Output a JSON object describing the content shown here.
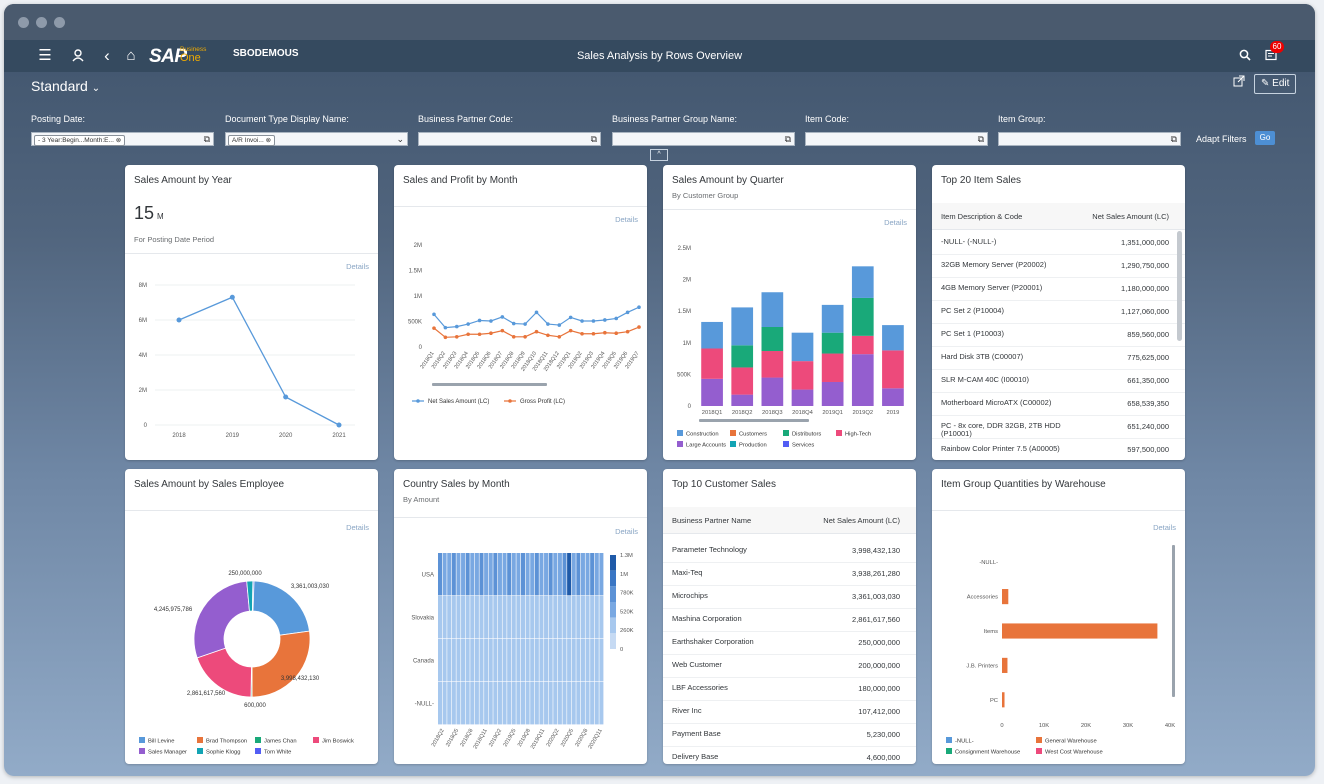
{
  "shell": {
    "company": "SBODEMOUS",
    "title": "Sales Analysis by Rows Overview",
    "notifications": "60",
    "logo_text": "SAP",
    "logo_product_1": "Business",
    "logo_product_2": "One"
  },
  "header": {
    "variant": "Standard",
    "edit_label": "Edit"
  },
  "filters": [
    {
      "label": "Posting Date:",
      "token": "- 3 Year:Begin...Month:E..."
    },
    {
      "label": "Document Type Display Name:",
      "token": "A/R Invoi..."
    },
    {
      "label": "Business Partner Code:",
      "token": ""
    },
    {
      "label": "Business Partner Group Name:",
      "token": ""
    },
    {
      "label": "Item Code:",
      "token": ""
    },
    {
      "label": "Item Group:",
      "token": ""
    }
  ],
  "filter_actions": {
    "adapt": "Adapt Filters",
    "go": "Go"
  },
  "details_label": "Details",
  "cards": {
    "year": {
      "title": "Sales Amount by Year",
      "kpi_value": "15",
      "kpi_unit": "M",
      "kpi_subtitle": "For Posting Date Period",
      "chart_data": {
        "type": "line",
        "categories": [
          "2018",
          "2019",
          "2020",
          "2021"
        ],
        "values": [
          6000000,
          7300000,
          1600000,
          0
        ],
        "y_ticks": [
          "0",
          "2M",
          "4M",
          "6M",
          "8M"
        ],
        "ylim": [
          0,
          8000000
        ]
      }
    },
    "month": {
      "title": "Sales and Profit by Month",
      "chart_data": {
        "type": "line",
        "categories": [
          "2018Q1",
          "2018Q2",
          "2018Q3",
          "2018Q4",
          "2018Q5",
          "2018Q6",
          "2018Q7",
          "2018Q8",
          "2018Q9",
          "2018Q10",
          "2018Q11",
          "2018Q12",
          "2019Q1",
          "2019Q2",
          "2019Q3",
          "2019Q4",
          "2019Q5",
          "2019Q6",
          "2019Q7"
        ],
        "tick_labels": [
          "2018Q1",
          "2018Q2",
          "2018Q3",
          "2018Q4",
          "2018Q5",
          "2018Q6",
          "2018Q7",
          "2018Q8",
          "2018Q9",
          "2018Q10",
          "2018Q11",
          "2018Q12",
          "2019Q1",
          "2019Q2",
          "2019Q3",
          "2019Q4",
          "2019Q5",
          "2019Q6",
          "2019Q7"
        ],
        "series": [
          {
            "name": "Net Sales Amount (LC)",
            "color": "#5899da",
            "values": [
              640000,
              380000,
              400000,
              450000,
              520000,
              510000,
              590000,
              460000,
              450000,
              680000,
              450000,
              430000,
              580000,
              510000,
              510000,
              530000,
              560000,
              680000,
              780000
            ]
          },
          {
            "name": "Gross Profit (LC)",
            "color": "#e8743b",
            "values": [
              370000,
              190000,
              200000,
              250000,
              250000,
              270000,
              320000,
              200000,
              200000,
              300000,
              230000,
              200000,
              320000,
              260000,
              260000,
              280000,
              270000,
              300000,
              390000
            ]
          }
        ],
        "y_ticks": [
          "0",
          "500K",
          "1M",
          "1.5M",
          "2M"
        ],
        "ylim": [
          0,
          2000000
        ]
      }
    },
    "quarter": {
      "title": "Sales Amount by Quarter",
      "subtitle": "By Customer Group",
      "chart_data": {
        "type": "bar",
        "categories": [
          "2018Q1",
          "2018Q2",
          "2018Q3",
          "2018Q4",
          "2019Q1",
          "2019Q2",
          "2019"
        ],
        "series": [
          {
            "name": "Construction",
            "color": "#5899da",
            "values": [
              420000,
              600000,
              550000,
              450000,
              440000,
              500000,
              400000
            ]
          },
          {
            "name": "Customers",
            "color": "#e8743b",
            "values": [
              0,
              0,
              0,
              0,
              0,
              0,
              0
            ]
          },
          {
            "name": "Distributors",
            "color": "#19a979",
            "values": [
              0,
              350000,
              380000,
              0,
              330000,
              600000,
              0
            ]
          },
          {
            "name": "High-Tech",
            "color": "#ed4a7b",
            "values": [
              480000,
              430000,
              420000,
              450000,
              450000,
              290000,
              600000
            ]
          },
          {
            "name": "Large Accounts",
            "color": "#945ecf",
            "values": [
              430000,
              180000,
              450000,
              260000,
              380000,
              820000,
              280000
            ]
          },
          {
            "name": "Production",
            "color": "#13a4b4",
            "values": [
              0,
              0,
              0,
              0,
              0,
              0,
              0
            ]
          },
          {
            "name": "Services",
            "color": "#525df4",
            "values": [
              0,
              0,
              0,
              0,
              0,
              0,
              0
            ]
          }
        ],
        "y_ticks": [
          "0",
          "500K",
          "1M",
          "1.5M",
          "2M",
          "2.5M"
        ],
        "ylim": [
          0,
          2500000
        ]
      }
    },
    "top20": {
      "title": "Top 20 Item Sales",
      "col1": "Item Description & Code",
      "col2": "Net Sales Amount (LC)",
      "rows": [
        {
          "name": "-NULL- (-NULL-)",
          "value": "1,351,000,000"
        },
        {
          "name": "32GB Memory Server (P20002)",
          "value": "1,290,750,000"
        },
        {
          "name": "4GB Memory Server (P20001)",
          "value": "1,180,000,000"
        },
        {
          "name": "PC Set 2 (P10004)",
          "value": "1,127,060,000"
        },
        {
          "name": "PC Set 1 (P10003)",
          "value": "859,560,000"
        },
        {
          "name": "Hard Disk 3TB (C00007)",
          "value": "775,625,000"
        },
        {
          "name": "SLR M-CAM 40C (I00010)",
          "value": "661,350,000"
        },
        {
          "name": "Motherboard MicroATX (C00002)",
          "value": "658,539,350"
        },
        {
          "name": "PC - 8x core, DDR 32GB, 2TB HDD (P10001)",
          "value": "651,240,000"
        },
        {
          "name": "Rainbow Color Printer 7.5 (A00005)",
          "value": "597,500,000"
        }
      ]
    },
    "employee": {
      "title": "Sales Amount by Sales Employee",
      "chart_data": {
        "type": "pie",
        "slices": [
          {
            "name": "Bill Levine",
            "value": 3361003030,
            "label": "3,361,003,030",
            "color": "#5899da"
          },
          {
            "name": "Brad Thompson",
            "value": 3998432130,
            "label": "3,998,432,130",
            "color": "#e8743b"
          },
          {
            "name": "James Chan",
            "value": 600000,
            "label": "600,000",
            "color": "#19a979"
          },
          {
            "name": "Jim Boswick",
            "value": 2861617560,
            "label": "2,861,617,560",
            "color": "#ed4a7b"
          },
          {
            "name": "Sales Manager",
            "value": 4245975786,
            "label": "4,245,975,786",
            "color": "#945ecf"
          },
          {
            "name": "Sophie Klogg",
            "value": 250000000,
            "label": "250,000,000",
            "color": "#13a4b4"
          },
          {
            "name": "Tom White",
            "value": 10000000,
            "label": "",
            "color": "#525df4"
          }
        ]
      }
    },
    "country": {
      "title": "Country Sales by Month",
      "subtitle": "By Amount",
      "chart_data": {
        "type": "heatmap",
        "rows": [
          "USA",
          "Slovakia",
          "Canada",
          "-NULL-"
        ],
        "x_ticks": [
          "2018Q2",
          "2018Q5",
          "2018Q8",
          "2018Q11",
          "2019Q2",
          "2019Q5",
          "2019Q8",
          "2019Q11",
          "2020Q2",
          "2020Q5",
          "2020Q8",
          "2020Q11"
        ],
        "scale_labels": [
          "0",
          "260K",
          "520K",
          "780K",
          "1M",
          "1.3M"
        ]
      }
    },
    "top10": {
      "title": "Top 10 Customer Sales",
      "col1": "Business Partner Name",
      "col2": "Net Sales Amount (LC)",
      "rows": [
        {
          "name": "Parameter Technology",
          "value": "3,998,432,130"
        },
        {
          "name": "Maxi-Teq",
          "value": "3,938,261,280"
        },
        {
          "name": "Microchips",
          "value": "3,361,003,030"
        },
        {
          "name": "Mashina Corporation",
          "value": "2,861,617,560"
        },
        {
          "name": "Earthshaker Corporation",
          "value": "250,000,000"
        },
        {
          "name": "Web Customer",
          "value": "200,000,000"
        },
        {
          "name": "LBF Accessories",
          "value": "180,000,000"
        },
        {
          "name": "River Inc",
          "value": "107,412,000"
        },
        {
          "name": "Payment Base",
          "value": "5,230,000"
        },
        {
          "name": "Delivery Base",
          "value": "4,600,000"
        }
      ]
    },
    "warehouse": {
      "title": "Item Group Quantities by Warehouse",
      "chart_data": {
        "type": "bar",
        "orientation": "horizontal",
        "categories": [
          "-NULL-",
          "Accessories",
          "Items",
          "J.B. Printers",
          "PC"
        ],
        "series": [
          {
            "name": "-NULL-",
            "color": "#5899da",
            "values": [
              0,
              0,
              0,
              0,
              0
            ]
          },
          {
            "name": "General Warehouse",
            "color": "#e8743b",
            "values": [
              0,
              1500,
              37000,
              1300,
              600
            ]
          },
          {
            "name": "Consignment Warehouse",
            "color": "#19a979",
            "values": [
              0,
              0,
              0,
              0,
              0
            ]
          },
          {
            "name": "West Cost Warehouse",
            "color": "#ed4a7b",
            "values": [
              0,
              0,
              0,
              0,
              0
            ]
          }
        ],
        "x_ticks": [
          "0",
          "10K",
          "20K",
          "30K",
          "40K"
        ],
        "xlim": [
          0,
          40000
        ]
      }
    }
  }
}
